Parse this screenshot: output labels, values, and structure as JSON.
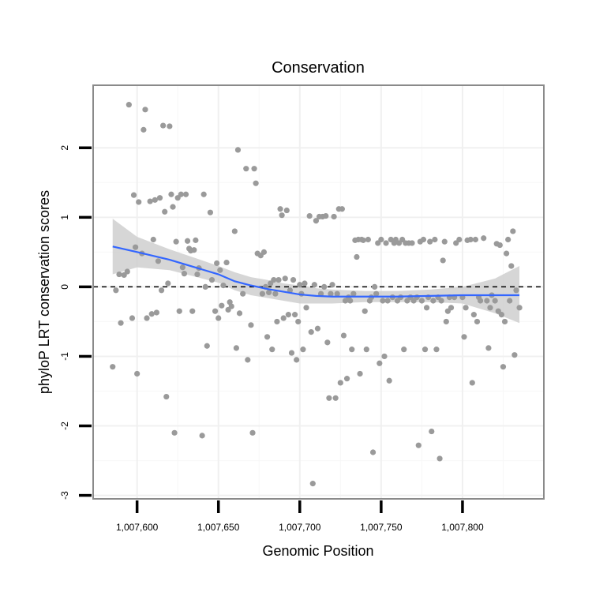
{
  "chart_data": {
    "type": "scatter",
    "title": "Conservation",
    "xlabel": "Genomic Position",
    "ylabel": "phyloP LRT conservation scores",
    "xlim": [
      1007573,
      1007850
    ],
    "ylim": [
      -3.05,
      2.9
    ],
    "x_ticks": [
      {
        "value": 1007600,
        "label": "1,007,600"
      },
      {
        "value": 1007650,
        "label": "1,007,650"
      },
      {
        "value": 1007700,
        "label": "1,007,700"
      },
      {
        "value": 1007750,
        "label": "1,007,750"
      },
      {
        "value": 1007800,
        "label": "1,007,800"
      }
    ],
    "y_ticks": [
      {
        "value": 2,
        "label": "2"
      },
      {
        "value": 1,
        "label": "1"
      },
      {
        "value": 0,
        "label": "0"
      },
      {
        "value": -1,
        "label": "-1"
      },
      {
        "value": -2,
        "label": "-2"
      },
      {
        "value": -3,
        "label": "-3"
      }
    ],
    "reference_line": {
      "y": 0,
      "style": "dashed",
      "color": "#000000"
    },
    "grid": true,
    "point_color": "#9a9a9a",
    "smooth_color": "#3366ff",
    "band_color": "#cccccc",
    "points": [
      [
        1007585,
        -1.15
      ],
      [
        1007587,
        -0.05
      ],
      [
        1007589,
        0.18
      ],
      [
        1007590,
        -0.52
      ],
      [
        1007592,
        0.17
      ],
      [
        1007594,
        0.22
      ],
      [
        1007595,
        2.62
      ],
      [
        1007597,
        -0.45
      ],
      [
        1007598,
        1.32
      ],
      [
        1007599,
        0.57
      ],
      [
        1007600,
        -1.25
      ],
      [
        1007601,
        1.22
      ],
      [
        1007603,
        0.48
      ],
      [
        1007604,
        2.26
      ],
      [
        1007605,
        2.55
      ],
      [
        1007606,
        -0.45
      ],
      [
        1007608,
        1.23
      ],
      [
        1007609,
        -0.39
      ],
      [
        1007610,
        0.68
      ],
      [
        1007611,
        1.25
      ],
      [
        1007612,
        -0.37
      ],
      [
        1007613,
        0.37
      ],
      [
        1007614,
        1.28
      ],
      [
        1007615,
        -0.05
      ],
      [
        1007616,
        2.32
      ],
      [
        1007617,
        1.08
      ],
      [
        1007618,
        -1.58
      ],
      [
        1007619,
        0.05
      ],
      [
        1007620,
        2.31
      ],
      [
        1007621,
        1.33
      ],
      [
        1007622,
        1.15
      ],
      [
        1007623,
        -2.1
      ],
      [
        1007624,
        0.65
      ],
      [
        1007625,
        1.28
      ],
      [
        1007626,
        -0.35
      ],
      [
        1007627,
        1.33
      ],
      [
        1007628,
        0.28
      ],
      [
        1007629,
        0.19
      ],
      [
        1007630,
        1.33
      ],
      [
        1007631,
        0.66
      ],
      [
        1007632,
        0.55
      ],
      [
        1007633,
        0.52
      ],
      [
        1007634,
        -0.35
      ],
      [
        1007635,
        0.53
      ],
      [
        1007636,
        0.67
      ],
      [
        1007637,
        0.18
      ],
      [
        1007638,
        0.27
      ],
      [
        1007640,
        -2.14
      ],
      [
        1007641,
        1.33
      ],
      [
        1007642,
        0.0
      ],
      [
        1007643,
        -0.85
      ],
      [
        1007645,
        1.07
      ],
      [
        1007646,
        0.1
      ],
      [
        1007648,
        -0.35
      ],
      [
        1007649,
        0.34
      ],
      [
        1007650,
        -0.45
      ],
      [
        1007651,
        0.24
      ],
      [
        1007652,
        -0.27
      ],
      [
        1007653,
        0.02
      ],
      [
        1007655,
        0.35
      ],
      [
        1007656,
        -0.33
      ],
      [
        1007657,
        -0.22
      ],
      [
        1007658,
        -0.28
      ],
      [
        1007660,
        0.8
      ],
      [
        1007661,
        -0.88
      ],
      [
        1007662,
        1.97
      ],
      [
        1007663,
        -0.38
      ],
      [
        1007665,
        -0.1
      ],
      [
        1007667,
        1.7
      ],
      [
        1007668,
        -1.05
      ],
      [
        1007670,
        -0.55
      ],
      [
        1007671,
        -2.1
      ],
      [
        1007672,
        1.7
      ],
      [
        1007673,
        1.49
      ],
      [
        1007674,
        0.48
      ],
      [
        1007676,
        0.45
      ],
      [
        1007677,
        -0.1
      ],
      [
        1007678,
        0.5
      ],
      [
        1007679,
        0.0
      ],
      [
        1007680,
        -0.72
      ],
      [
        1007681,
        -0.08
      ],
      [
        1007682,
        0.05
      ],
      [
        1007683,
        -0.9
      ],
      [
        1007684,
        0.1
      ],
      [
        1007685,
        -0.1
      ],
      [
        1007686,
        -0.5
      ],
      [
        1007687,
        0.1
      ],
      [
        1007688,
        1.12
      ],
      [
        1007689,
        1.03
      ],
      [
        1007690,
        -0.45
      ],
      [
        1007691,
        0.12
      ],
      [
        1007692,
        1.1
      ],
      [
        1007693,
        -0.4
      ],
      [
        1007694,
        -0.05
      ],
      [
        1007695,
        -0.95
      ],
      [
        1007696,
        0.1
      ],
      [
        1007697,
        -0.4
      ],
      [
        1007698,
        -1.05
      ],
      [
        1007699,
        -0.5
      ],
      [
        1007700,
        0.03
      ],
      [
        1007701,
        -0.1
      ],
      [
        1007702,
        -0.9
      ],
      [
        1007703,
        0.05
      ],
      [
        1007704,
        -0.3
      ],
      [
        1007706,
        1.02
      ],
      [
        1007707,
        -0.65
      ],
      [
        1007708,
        -2.83
      ],
      [
        1007709,
        0.03
      ],
      [
        1007710,
        0.95
      ],
      [
        1007711,
        -0.6
      ],
      [
        1007712,
        1.01
      ],
      [
        1007713,
        -0.1
      ],
      [
        1007714,
        1.01
      ],
      [
        1007715,
        0.0
      ],
      [
        1007716,
        1.02
      ],
      [
        1007717,
        -0.8
      ],
      [
        1007718,
        -1.6
      ],
      [
        1007719,
        -0.1
      ],
      [
        1007720,
        0.03
      ],
      [
        1007721,
        1.01
      ],
      [
        1007722,
        -1.6
      ],
      [
        1007723,
        -0.1
      ],
      [
        1007724,
        1.12
      ],
      [
        1007725,
        -1.38
      ],
      [
        1007726,
        1.12
      ],
      [
        1007727,
        -0.7
      ],
      [
        1007728,
        -0.2
      ],
      [
        1007729,
        -1.32
      ],
      [
        1007730,
        -0.15
      ],
      [
        1007731,
        -0.2
      ],
      [
        1007732,
        -0.9
      ],
      [
        1007733,
        -0.1
      ],
      [
        1007734,
        0.67
      ],
      [
        1007735,
        0.43
      ],
      [
        1007736,
        0.68
      ],
      [
        1007737,
        -1.25
      ],
      [
        1007738,
        0.68
      ],
      [
        1007739,
        0.67
      ],
      [
        1007740,
        -0.35
      ],
      [
        1007741,
        -0.9
      ],
      [
        1007742,
        0.68
      ],
      [
        1007743,
        -0.2
      ],
      [
        1007744,
        -0.15
      ],
      [
        1007745,
        -2.38
      ],
      [
        1007746,
        0.0
      ],
      [
        1007747,
        -0.1
      ],
      [
        1007748,
        0.63
      ],
      [
        1007749,
        -1.1
      ],
      [
        1007750,
        0.68
      ],
      [
        1007751,
        -0.2
      ],
      [
        1007752,
        -1.0
      ],
      [
        1007753,
        0.63
      ],
      [
        1007754,
        -0.2
      ],
      [
        1007755,
        -1.35
      ],
      [
        1007756,
        0.68
      ],
      [
        1007757,
        -0.15
      ],
      [
        1007758,
        0.63
      ],
      [
        1007759,
        0.68
      ],
      [
        1007760,
        -0.2
      ],
      [
        1007761,
        0.63
      ],
      [
        1007762,
        -0.15
      ],
      [
        1007763,
        0.68
      ],
      [
        1007764,
        -0.9
      ],
      [
        1007765,
        0.63
      ],
      [
        1007766,
        -0.2
      ],
      [
        1007767,
        0.63
      ],
      [
        1007768,
        -0.15
      ],
      [
        1007769,
        0.63
      ],
      [
        1007770,
        -0.2
      ],
      [
        1007772,
        -0.15
      ],
      [
        1007773,
        -2.28
      ],
      [
        1007774,
        0.65
      ],
      [
        1007775,
        -0.2
      ],
      [
        1007776,
        0.68
      ],
      [
        1007777,
        -0.9
      ],
      [
        1007778,
        -0.3
      ],
      [
        1007779,
        -0.15
      ],
      [
        1007780,
        0.65
      ],
      [
        1007781,
        -2.08
      ],
      [
        1007782,
        -0.2
      ],
      [
        1007783,
        0.68
      ],
      [
        1007784,
        -0.9
      ],
      [
        1007785,
        -0.15
      ],
      [
        1007786,
        -2.47
      ],
      [
        1007787,
        -0.2
      ],
      [
        1007788,
        0.38
      ],
      [
        1007789,
        0.65
      ],
      [
        1007790,
        -0.5
      ],
      [
        1007791,
        -0.35
      ],
      [
        1007792,
        -0.15
      ],
      [
        1007793,
        -0.3
      ],
      [
        1007795,
        -0.15
      ],
      [
        1007796,
        0.63
      ],
      [
        1007798,
        0.68
      ],
      [
        1007800,
        -0.15
      ],
      [
        1007801,
        -0.72
      ],
      [
        1007802,
        -0.3
      ],
      [
        1007803,
        0.67
      ],
      [
        1007805,
        0.68
      ],
      [
        1007806,
        -1.38
      ],
      [
        1007807,
        -0.4
      ],
      [
        1007808,
        0.68
      ],
      [
        1007809,
        -0.5
      ],
      [
        1007810,
        -0.15
      ],
      [
        1007811,
        -0.2
      ],
      [
        1007813,
        0.7
      ],
      [
        1007815,
        -0.2
      ],
      [
        1007816,
        -0.88
      ],
      [
        1007817,
        -0.3
      ],
      [
        1007818,
        -0.12
      ],
      [
        1007820,
        -0.2
      ],
      [
        1007821,
        0.62
      ],
      [
        1007822,
        -0.35
      ],
      [
        1007823,
        0.6
      ],
      [
        1007824,
        -0.4
      ],
      [
        1007825,
        -1.15
      ],
      [
        1007826,
        -0.5
      ],
      [
        1007827,
        0.48
      ],
      [
        1007828,
        0.68
      ],
      [
        1007829,
        -0.2
      ],
      [
        1007830,
        0.3
      ],
      [
        1007831,
        0.8
      ],
      [
        1007832,
        -0.98
      ],
      [
        1007833,
        -0.05
      ],
      [
        1007835,
        -0.3
      ]
    ],
    "smooth": [
      [
        1007585,
        0.58
      ],
      [
        1007600,
        0.5
      ],
      [
        1007620,
        0.39
      ],
      [
        1007640,
        0.25
      ],
      [
        1007650,
        0.18
      ],
      [
        1007660,
        0.08
      ],
      [
        1007670,
        0.02
      ],
      [
        1007680,
        -0.03
      ],
      [
        1007690,
        -0.07
      ],
      [
        1007700,
        -0.11
      ],
      [
        1007710,
        -0.13
      ],
      [
        1007720,
        -0.14
      ],
      [
        1007740,
        -0.14
      ],
      [
        1007760,
        -0.14
      ],
      [
        1007780,
        -0.13
      ],
      [
        1007800,
        -0.12
      ],
      [
        1007820,
        -0.12
      ],
      [
        1007835,
        -0.12
      ]
    ],
    "band_upper": [
      [
        1007585,
        0.98
      ],
      [
        1007600,
        0.72
      ],
      [
        1007620,
        0.54
      ],
      [
        1007640,
        0.38
      ],
      [
        1007650,
        0.3
      ],
      [
        1007660,
        0.21
      ],
      [
        1007670,
        0.14
      ],
      [
        1007680,
        0.1
      ],
      [
        1007690,
        0.05
      ],
      [
        1007700,
        0.02
      ],
      [
        1007710,
        -0.02
      ],
      [
        1007720,
        -0.04
      ],
      [
        1007740,
        -0.06
      ],
      [
        1007760,
        -0.06
      ],
      [
        1007780,
        -0.04
      ],
      [
        1007800,
        0.0
      ],
      [
        1007820,
        0.12
      ],
      [
        1007835,
        0.3
      ]
    ],
    "band_lower": [
      [
        1007585,
        0.18
      ],
      [
        1007600,
        0.28
      ],
      [
        1007620,
        0.24
      ],
      [
        1007640,
        0.12
      ],
      [
        1007650,
        0.06
      ],
      [
        1007660,
        -0.05
      ],
      [
        1007670,
        -0.12
      ],
      [
        1007680,
        -0.16
      ],
      [
        1007690,
        -0.2
      ],
      [
        1007700,
        -0.24
      ],
      [
        1007710,
        -0.24
      ],
      [
        1007720,
        -0.24
      ],
      [
        1007740,
        -0.22
      ],
      [
        1007760,
        -0.22
      ],
      [
        1007780,
        -0.22
      ],
      [
        1007800,
        -0.24
      ],
      [
        1007820,
        -0.38
      ],
      [
        1007835,
        -0.52
      ]
    ]
  }
}
